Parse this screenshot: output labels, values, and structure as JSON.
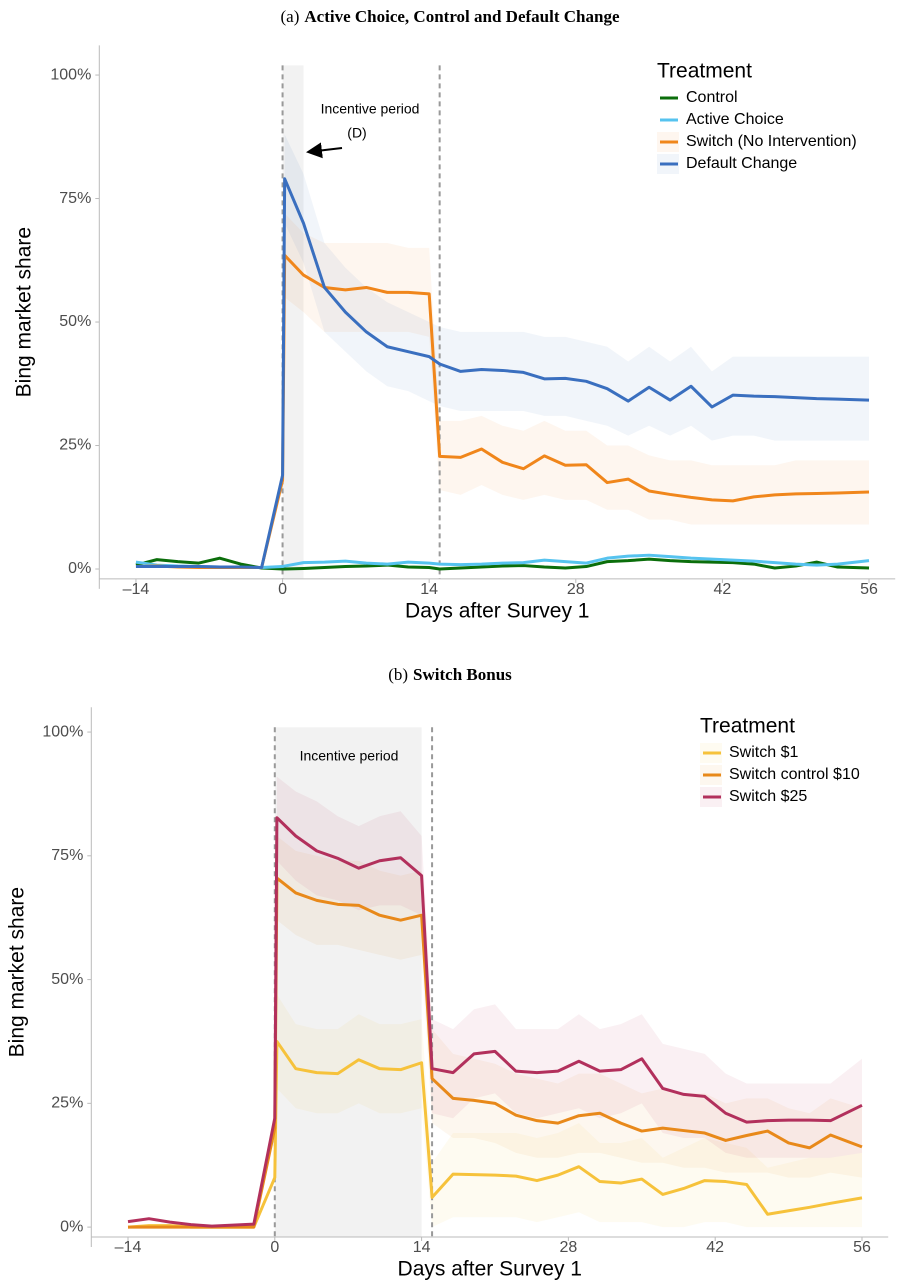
{
  "chart_data": [
    {
      "type": "line",
      "panel": "(a)",
      "title": "Active Choice, Control and Default Change",
      "x_label": "Days after Survey 1",
      "y_label": "Bing market share",
      "legend_title": "Treatment",
      "legend_position": "top-right",
      "annotations": [
        "Incentive period",
        "(D)"
      ],
      "incentive_period": [
        0,
        2
      ],
      "dashed_lines": [
        0,
        15
      ],
      "xlim": [
        -17.5,
        58.5
      ],
      "ylim": [
        -2,
        106
      ],
      "xticks": [
        {
          "value": -14,
          "label": "–14"
        },
        0,
        14,
        28,
        42,
        56
      ],
      "yticks": [
        {
          "value": 0,
          "label": "0%"
        },
        {
          "value": 25,
          "label": "25%"
        },
        {
          "value": 50,
          "label": "50%"
        },
        {
          "value": 75,
          "label": "75%"
        },
        {
          "value": 100,
          "label": "100%"
        }
      ],
      "x": [
        -14,
        -12,
        -10,
        -8,
        -6,
        -4,
        -2,
        0,
        0.2,
        2,
        4,
        6,
        8,
        10,
        12,
        14,
        15,
        17,
        19,
        21,
        23,
        25,
        27,
        29,
        31,
        33,
        35,
        37,
        39,
        41,
        43,
        45,
        47,
        49,
        51,
        53,
        56
      ],
      "series": [
        {
          "name": "Control",
          "color": "#0b6e0b",
          "values": [
            0.8,
            1.9,
            1.5,
            1.2,
            2.2,
            1.0,
            0.2,
            0,
            0,
            0.1,
            0.3,
            0.5,
            0.6,
            0.8,
            0.4,
            0.3,
            0,
            0.2,
            0.4,
            0.6,
            0.7,
            0.4,
            0.2,
            0.5,
            1.5,
            1.7,
            2.0,
            1.7,
            1.5,
            1.4,
            1.3,
            1.0,
            0.2,
            0.6,
            1.4,
            0.4,
            0.2
          ]
        },
        {
          "name": "Active Choice",
          "color": "#56c3ef",
          "values": [
            1.4,
            0.8,
            0.6,
            0.5,
            0.4,
            0.3,
            0.3,
            0.5,
            0.6,
            1.3,
            1.4,
            1.6,
            1.2,
            1.0,
            1.4,
            1.2,
            1.0,
            0.9,
            1.0,
            1.2,
            1.3,
            1.8,
            1.5,
            1.2,
            2.2,
            2.6,
            2.8,
            2.5,
            2.2,
            2.0,
            1.8,
            1.6,
            1.3,
            1.0,
            0.8,
            1.0,
            1.7
          ]
        },
        {
          "name": "Switch (No Intervention)",
          "color": "#f0861b",
          "values": [
            0.5,
            0.6,
            0.4,
            0.3,
            0.3,
            0.3,
            0.3,
            18,
            63.5,
            59.5,
            57,
            56.5,
            57,
            56,
            56,
            55.7,
            22.8,
            22.6,
            24.3,
            21.6,
            20.3,
            22.9,
            21,
            21.1,
            17.5,
            18.2,
            15.8,
            15.1,
            14.5,
            14,
            13.8,
            14.6,
            15,
            15.2,
            15.3,
            15.4,
            15.6
          ],
          "ci_lower": [
            null,
            null,
            null,
            null,
            null,
            null,
            null,
            null,
            55,
            52,
            48,
            48,
            48,
            48,
            48,
            47,
            16,
            15,
            17,
            15,
            14,
            15,
            14,
            14,
            12,
            12,
            10,
            10,
            9,
            9,
            9,
            9,
            9,
            9,
            9,
            9,
            9
          ],
          "ci_upper": [
            null,
            null,
            null,
            null,
            null,
            null,
            null,
            null,
            72,
            68,
            66,
            66,
            66,
            66,
            65,
            65,
            30,
            30,
            31,
            29,
            28,
            30,
            28,
            28,
            25,
            25,
            23,
            22,
            22,
            21,
            21,
            21,
            21,
            22,
            22,
            22,
            22
          ]
        },
        {
          "name": "Default Change",
          "color": "#3a6fbf",
          "values": [
            0.5,
            0.5,
            0.5,
            0.5,
            0.4,
            0.4,
            0.3,
            19,
            79,
            70,
            57,
            52,
            48,
            45,
            44,
            43,
            41.5,
            40,
            40.4,
            40.2,
            39.8,
            38.5,
            38.6,
            38,
            36.5,
            34,
            36.8,
            34.2,
            37,
            32.8,
            35.2,
            35,
            34.9,
            34.7,
            34.5,
            34.4,
            34.2
          ],
          "ci_lower": [
            null,
            null,
            null,
            null,
            null,
            null,
            null,
            null,
            70,
            62,
            48,
            44,
            40,
            37,
            36,
            34,
            33,
            32,
            32,
            32,
            32,
            31,
            31,
            30,
            29,
            27,
            29,
            27,
            29,
            26,
            27,
            27,
            26,
            26,
            26,
            26,
            26
          ],
          "ci_upper": [
            null,
            null,
            null,
            null,
            null,
            null,
            null,
            null,
            88,
            80,
            66,
            61,
            57,
            54,
            52,
            50,
            49,
            48,
            48,
            48,
            48,
            47,
            47,
            46,
            45,
            42,
            45,
            42,
            45,
            40,
            43,
            43,
            43,
            43,
            43,
            43,
            43
          ]
        }
      ]
    },
    {
      "type": "line",
      "panel": "(b)",
      "title": "Switch Bonus",
      "x_label": "Days after Survey 1",
      "y_label": "Bing market share",
      "legend_title": "Treatment",
      "legend_position": "top-right",
      "annotations": [
        "Incentive period"
      ],
      "incentive_period": [
        0,
        14
      ],
      "dashed_lines": [
        0,
        15
      ],
      "xlim": [
        -17.5,
        58.5
      ],
      "ylim": [
        -2,
        105
      ],
      "xticks": [
        {
          "value": -14,
          "label": "–14"
        },
        0,
        14,
        28,
        42,
        56
      ],
      "yticks": [
        {
          "value": 0,
          "label": "0%"
        },
        {
          "value": 25,
          "label": "25%"
        },
        {
          "value": 50,
          "label": "50%"
        },
        {
          "value": 75,
          "label": "75%"
        },
        {
          "value": 100,
          "label": "100%"
        }
      ],
      "x": [
        -14,
        -12,
        -10,
        -8,
        -6,
        -4,
        -2,
        0,
        0.2,
        2,
        4,
        6,
        8,
        10,
        12,
        14,
        15,
        17,
        19,
        21,
        23,
        25,
        27,
        29,
        31,
        33,
        35,
        37,
        39,
        41,
        43,
        45,
        47,
        49,
        51,
        53,
        56
      ],
      "series": [
        {
          "name": "Switch $1",
          "color": "#f6c23b",
          "values": [
            0,
            0.3,
            0.3,
            0,
            0,
            0,
            0,
            10,
            37.5,
            32,
            31.2,
            31,
            33.8,
            32,
            31.8,
            33.2,
            6,
            10.7,
            10.6,
            10.5,
            10.3,
            9.4,
            10.5,
            12.2,
            9.2,
            8.9,
            9.7,
            6.6,
            7.8,
            9.4,
            9.2,
            8.6,
            2.6,
            3.3,
            4.0,
            4.8,
            5.9
          ],
          "ci_lower": [
            null,
            null,
            null,
            null,
            null,
            null,
            null,
            null,
            28,
            24,
            23,
            23,
            25,
            23,
            23,
            24,
            0,
            2,
            2,
            2,
            2,
            1,
            2,
            3,
            1,
            1,
            1,
            0,
            0,
            1,
            1,
            0,
            0,
            0,
            0,
            0,
            0
          ],
          "ci_upper": [
            null,
            null,
            null,
            null,
            null,
            null,
            null,
            null,
            47,
            41,
            40,
            40,
            43,
            41,
            41,
            42,
            13,
            19,
            19,
            19,
            19,
            18,
            19,
            21,
            17,
            17,
            18,
            14,
            16,
            18,
            17,
            16,
            12,
            13,
            14,
            14,
            15
          ]
        },
        {
          "name": "Switch control $10",
          "color": "#e8891a",
          "values": [
            0,
            0,
            0,
            0,
            0,
            0,
            0,
            20,
            70.5,
            67.5,
            66,
            65.2,
            65,
            63,
            62,
            63,
            30,
            26,
            25.6,
            25,
            22.6,
            21.5,
            21,
            22.5,
            23,
            21,
            19.4,
            20,
            19.5,
            19,
            17.5,
            18.5,
            19.4,
            17,
            16,
            18.6,
            16.2
          ],
          "ci_lower": [
            null,
            null,
            null,
            null,
            null,
            null,
            null,
            null,
            62,
            59,
            57,
            57,
            56,
            55,
            54,
            55,
            21,
            18,
            18,
            17,
            15,
            14,
            14,
            15,
            15,
            14,
            13,
            13,
            12,
            12,
            11,
            11,
            11,
            10,
            10,
            11,
            10
          ],
          "ci_upper": [
            null,
            null,
            null,
            null,
            null,
            null,
            null,
            null,
            79,
            76,
            75,
            74,
            74,
            72,
            71,
            72,
            40,
            35,
            34,
            33,
            31,
            30,
            29,
            31,
            31,
            29,
            27,
            28,
            27,
            27,
            25,
            26,
            26,
            24,
            23,
            26,
            24
          ]
        },
        {
          "name": "Switch $25",
          "color": "#b2305c",
          "values": [
            1.1,
            1.7,
            1.0,
            0.5,
            0.2,
            0.4,
            0.6,
            22,
            82.7,
            79,
            76,
            74.5,
            72.5,
            74,
            74.6,
            71,
            32,
            31.2,
            35,
            35.5,
            31.5,
            31.2,
            31.5,
            33.5,
            31.5,
            31.8,
            34,
            28,
            26.8,
            26.4,
            23,
            21.2,
            21.5,
            21.6,
            21.6,
            21.5,
            24.6
          ],
          "ci_lower": [
            null,
            null,
            null,
            null,
            null,
            null,
            null,
            null,
            74,
            70,
            67,
            66,
            64,
            65,
            65,
            63,
            23,
            22,
            26,
            27,
            23,
            22,
            23,
            24,
            22,
            23,
            25,
            19,
            18,
            18,
            15,
            14,
            14,
            14,
            14,
            14,
            15
          ],
          "ci_upper": [
            null,
            null,
            null,
            null,
            null,
            null,
            null,
            null,
            91,
            88,
            86,
            83,
            81,
            83,
            84,
            79,
            42,
            40,
            44,
            45,
            40,
            40,
            40,
            43,
            40,
            41,
            43,
            37,
            36,
            35,
            31,
            29,
            29,
            29,
            29,
            29,
            34
          ]
        }
      ]
    }
  ]
}
